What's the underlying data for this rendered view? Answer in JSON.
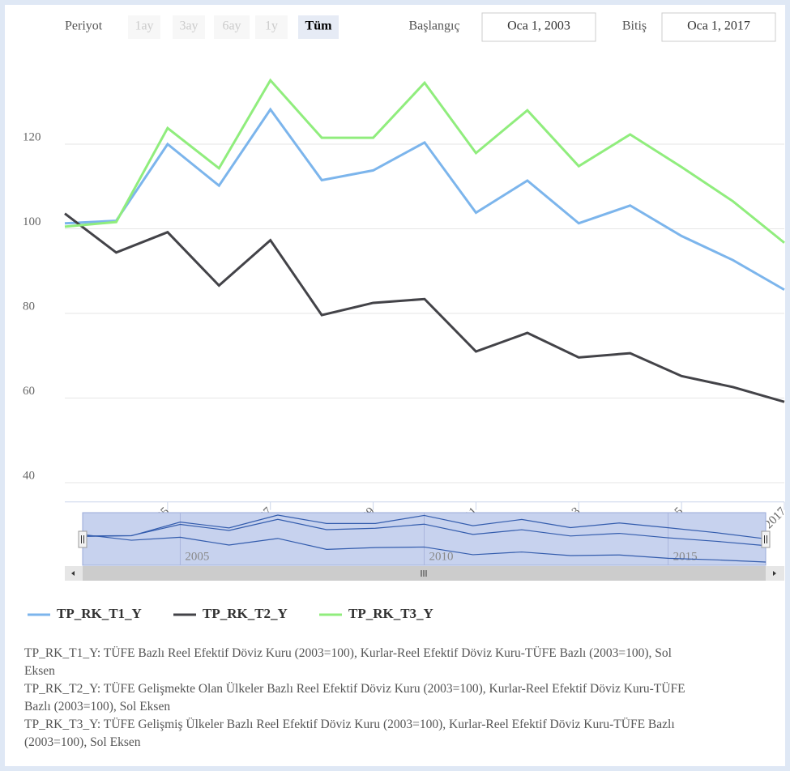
{
  "range_selector": {
    "label": "Periyot",
    "buttons": [
      "1ay",
      "3ay",
      "6ay",
      "1y",
      "Tüm"
    ],
    "start_label": "Başlangıç",
    "start": "Oca 1, 2003",
    "end_label": "Bitiş",
    "end": "Oca 1, 2017"
  },
  "chart_data": {
    "type": "line",
    "x": [
      2003,
      2004,
      2005,
      2006,
      2007,
      2008,
      2009,
      2010,
      2011,
      2012,
      2013,
      2014,
      2015,
      2016,
      2017
    ],
    "series": [
      {
        "name": "TP_RK_T1_Y",
        "color": "#7cb5ec",
        "values": [
          101.3,
          101.9,
          120,
          110.2,
          128.2,
          111.5,
          113.8,
          120.4,
          103.8,
          111.4,
          101.3,
          105.5,
          98.3,
          92.6,
          85.6
        ]
      },
      {
        "name": "TP_RK_T2_Y",
        "color": "#434348",
        "values": [
          103.6,
          94.4,
          99.2,
          86.6,
          97.3,
          79.6,
          82.5,
          83.4,
          71,
          75.4,
          69.6,
          70.6,
          65.2,
          62.6,
          59.1
        ]
      },
      {
        "name": "TP_RK_T3_Y",
        "color": "#90ed7d",
        "values": [
          100.5,
          101.6,
          123.8,
          114.3,
          135.1,
          121.5,
          121.5,
          134.5,
          117.9,
          128,
          114.8,
          122.3,
          114.6,
          106.5,
          96.7
        ]
      }
    ],
    "xlim": [
      2003,
      2017
    ],
    "xticks": [
      2005,
      2007,
      2009,
      2011,
      2013,
      2015,
      2017
    ],
    "ylim": [
      37,
      140
    ],
    "yticks": [
      40,
      60,
      80,
      100,
      120
    ],
    "grid": true,
    "navigator_xticks": [
      2005,
      2010,
      2015
    ]
  },
  "notes": [
    "TP_RK_T1_Y: TÜFE Bazlı Reel Efektif Döviz Kuru (2003=100), Kurlar-Reel Efektif Döviz Kuru-TÜFE Bazlı (2003=100), Sol Eksen",
    "TP_RK_T2_Y: TÜFE Gelişmekte Olan Ülkeler Bazlı Reel Efektif Döviz Kuru (2003=100), Kurlar-Reel Efektif Döviz Kuru-TÜFE Bazlı (2003=100), Sol Eksen",
    "TP_RK_T3_Y: TÜFE Gelişmiş Ülkeler Bazlı Reel Efektif Döviz Kuru (2003=100), Kurlar-Reel Efektif Döviz Kuru-TÜFE Bazlı (2003=100), Sol Eksen"
  ]
}
